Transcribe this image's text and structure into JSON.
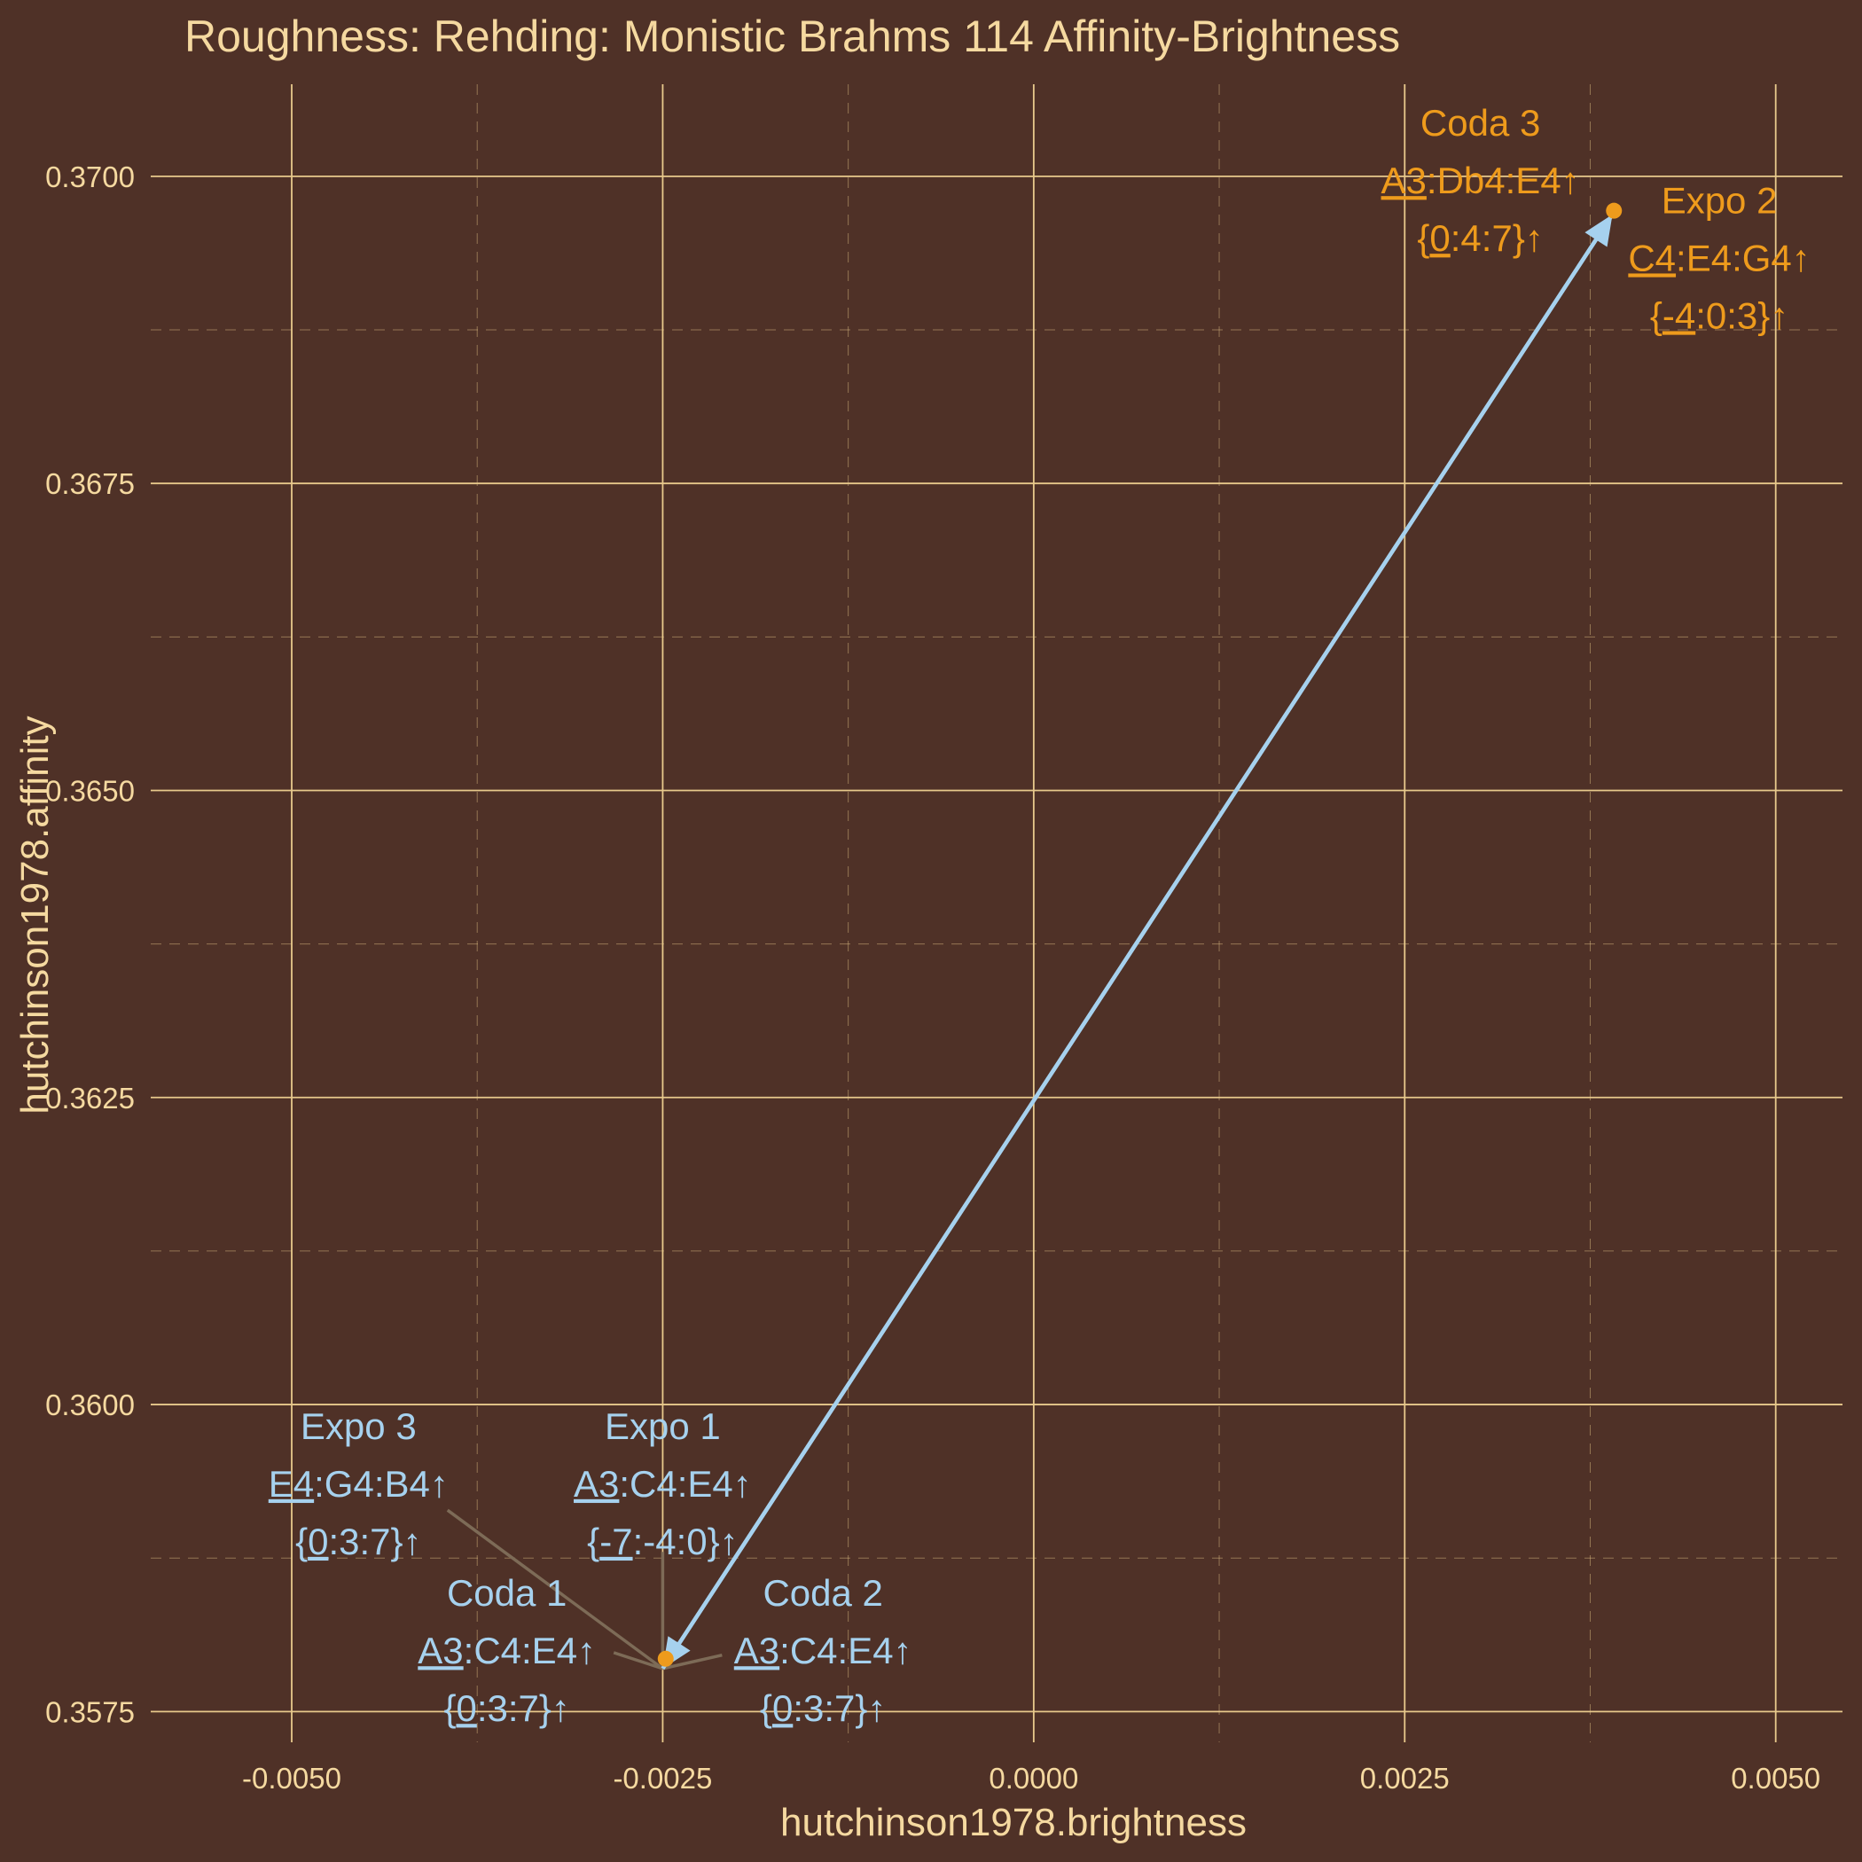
{
  "chart_data": {
    "type": "scatter",
    "title": "Roughness: Rehding: Monistic Brahms 114 Affinity-Brightness",
    "xlabel": "hutchinson1978.brightness",
    "ylabel": "hutchinson1978.affinity",
    "xlim": [
      -0.00595,
      0.00545
    ],
    "ylim": [
      0.35725,
      0.37075
    ],
    "xticks": [
      -0.005,
      -0.0025,
      0.0,
      0.0025,
      0.005
    ],
    "xtick_labels": [
      "-0.0050",
      "-0.0025",
      "0.0000",
      "0.0025",
      "0.0050"
    ],
    "yticks": [
      0.3575,
      0.36,
      0.3625,
      0.365,
      0.3675,
      0.37
    ],
    "ytick_labels": [
      "0.3575",
      "0.3600",
      "0.3625",
      "0.3650",
      "0.3675",
      "0.3700"
    ],
    "grid": true,
    "colors": {
      "background": "#4f3127",
      "grid": "#e8c98c",
      "text": "#f5d9a0",
      "blue": "#a6d1ee",
      "orange": "#ee9b1c",
      "leader": "#7d6b57"
    },
    "points": [
      {
        "x": 0.00391,
        "y": 0.36972,
        "color": "orange"
      },
      {
        "x": -0.00248,
        "y": 0.35793,
        "color": "orange"
      }
    ],
    "arrows": [
      {
        "from": [
          -0.0025,
          0.35785
        ],
        "to": [
          0.0039,
          0.36969
        ],
        "color": "blue"
      },
      {
        "from": [
          0.0039,
          0.36969
        ],
        "to": [
          -0.0025,
          0.35785
        ],
        "color": "blue"
      }
    ],
    "labels": [
      {
        "name": "Expo 3",
        "notes": [
          "E4",
          ":G4:B4↑"
        ],
        "pcs": [
          "{",
          "0",
          ":3:7}↑"
        ],
        "x": -0.00455,
        "y": 0.35972,
        "color": "blue",
        "leader_from": [
          -0.00395,
          0.35914
        ]
      },
      {
        "name": "Expo 1",
        "notes": [
          "A3",
          ":C4:E4↑"
        ],
        "pcs": [
          "{",
          "-7",
          ":-4:0}↑"
        ],
        "x": -0.0025,
        "y": 0.35972,
        "color": "blue",
        "leader_from": [
          -0.0025,
          0.3588
        ]
      },
      {
        "name": "Coda 1",
        "notes": [
          "A3",
          ":C4:E4↑"
        ],
        "pcs": [
          "{",
          "0",
          ":3:7}↑"
        ],
        "x": -0.00355,
        "y": 0.35836,
        "color": "blue",
        "leader_from": [
          -0.00283,
          0.35798
        ]
      },
      {
        "name": "Coda 2",
        "notes": [
          "A3",
          ":C4:E4↑"
        ],
        "pcs": [
          "{",
          "0",
          ":3:7}↑"
        ],
        "x": -0.00142,
        "y": 0.35836,
        "color": "blue",
        "leader_from": [
          -0.0021,
          0.35796
        ]
      },
      {
        "name": "Coda 3",
        "notes": [
          "A3",
          ":Db4:E4↑"
        ],
        "pcs": [
          "{",
          "0",
          ":4:7}↑"
        ],
        "x": 0.00301,
        "y": 0.37033,
        "color": "orange"
      },
      {
        "name": "Expo 2",
        "notes": [
          "C4",
          ":E4:G4↑"
        ],
        "pcs": [
          "{",
          "-4",
          ":0:3}↑"
        ],
        "x": 0.00462,
        "y": 0.3697,
        "color": "orange"
      }
    ]
  }
}
